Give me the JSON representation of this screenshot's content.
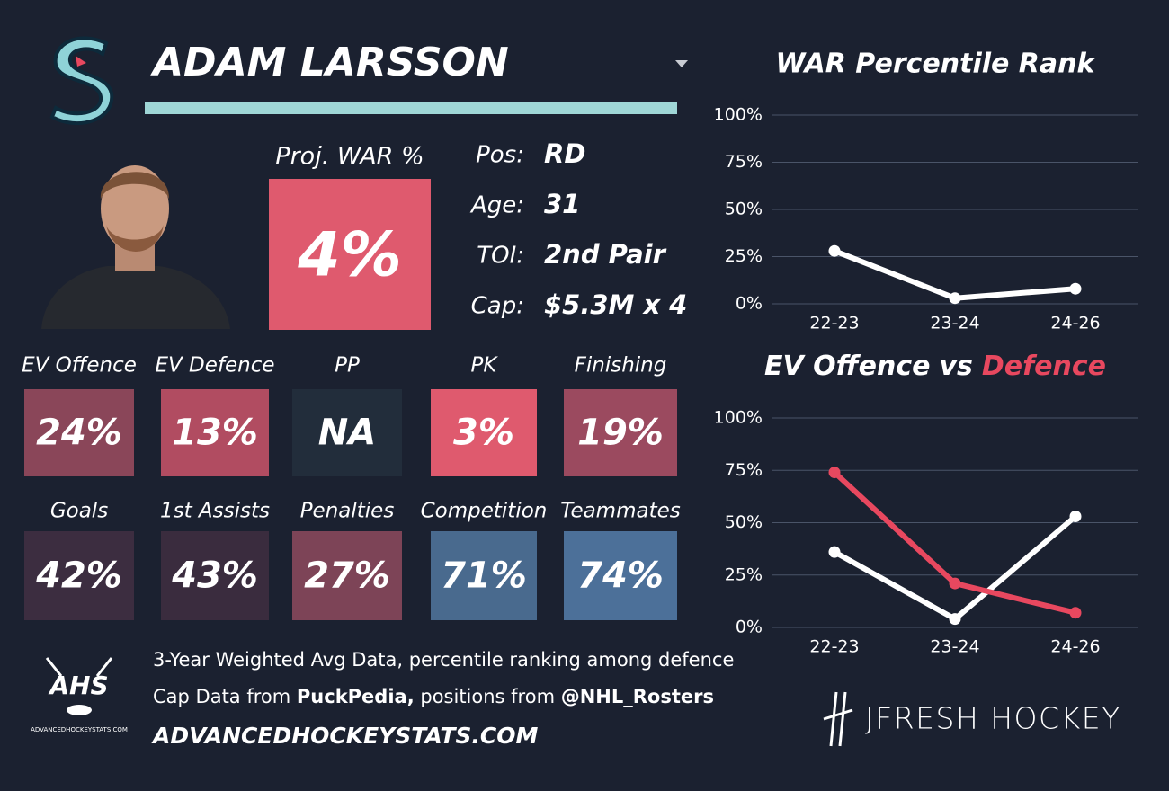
{
  "player": {
    "name": "ADAM LARSSON"
  },
  "projected": {
    "label": "Proj. WAR %",
    "value": "4%",
    "color": "#df5a6e"
  },
  "bio": [
    {
      "label": "Pos:",
      "value": "RD"
    },
    {
      "label": "Age:",
      "value": "31"
    },
    {
      "label": "TOI:",
      "value": "2nd Pair"
    },
    {
      "label": "Cap:",
      "value": "$5.3M x 4"
    }
  ],
  "tiles": [
    {
      "label": "EV Offence",
      "value": "24%",
      "color": "#8a4659"
    },
    {
      "label": "EV Defence",
      "value": "13%",
      "color": "#b14c61"
    },
    {
      "label": "PP",
      "value": "NA",
      "color": "#222d3b"
    },
    {
      "label": "PK",
      "value": "3%",
      "color": "#df5a6e"
    },
    {
      "label": "Finishing",
      "value": "19%",
      "color": "#9b4a5f"
    },
    {
      "label": "Goals",
      "value": "42%",
      "color": "#3c2d40"
    },
    {
      "label": "1st Assists",
      "value": "43%",
      "color": "#3a2c3e"
    },
    {
      "label": "Penalties",
      "value": "27%",
      "color": "#7d4457"
    },
    {
      "label": "Competition",
      "value": "71%",
      "color": "#496a8e"
    },
    {
      "label": "Teammates",
      "value": "74%",
      "color": "#4c7099"
    }
  ],
  "footer": {
    "logo": "AHS",
    "logo_sub": "ADVANCEDHOCKEYSTATS.COM",
    "line1": "3-Year Weighted Avg Data, percentile ranking among defence",
    "line2": [
      {
        "text": "Cap Data from ",
        "bold": false
      },
      {
        "text": "PuckPedia,",
        "bold": true
      },
      {
        "text": " positions from ",
        "bold": false
      },
      {
        "text": "@NHL_Rosters",
        "bold": true
      }
    ],
    "site": "ADVANCEDHOCKEYSTATS.COM",
    "brand": "JFRESH HOCKEY"
  },
  "chart_data": [
    {
      "type": "line",
      "title": "WAR Percentile Rank",
      "categories": [
        "22-23",
        "23-24",
        "24-26"
      ],
      "series": [
        {
          "color": "#ffffff",
          "values": [
            28,
            3,
            8
          ]
        }
      ],
      "ylim": [
        0,
        100
      ],
      "yticks": [
        {
          "value": 0,
          "label": "0%"
        },
        {
          "value": 25,
          "label": "25%"
        },
        {
          "value": 50,
          "label": "50%"
        },
        {
          "value": 75,
          "label": "75%"
        },
        {
          "value": 100,
          "label": "100%"
        }
      ],
      "grid": true
    },
    {
      "type": "line",
      "title_joiner": "vs",
      "categories": [
        "22-23",
        "23-24",
        "24-26"
      ],
      "series": [
        {
          "name": "EV Offence",
          "color": "#ffffff",
          "values": [
            36,
            4,
            53
          ]
        },
        {
          "name": "Defence",
          "color": "#e8485f",
          "values": [
            74,
            21,
            7
          ]
        }
      ],
      "ylim": [
        0,
        100
      ],
      "yticks": [
        {
          "value": 0,
          "label": "0%"
        },
        {
          "value": 25,
          "label": "25%"
        },
        {
          "value": 50,
          "label": "50%"
        },
        {
          "value": 75,
          "label": "75%"
        },
        {
          "value": 100,
          "label": "100%"
        }
      ],
      "grid": true
    }
  ]
}
